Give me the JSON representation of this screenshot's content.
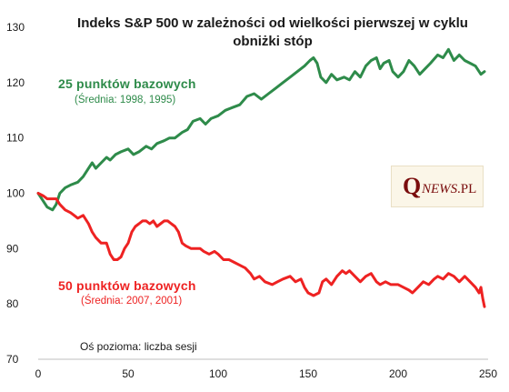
{
  "chart_data": {
    "type": "line",
    "title": "Indeks S&P 500 w zależności od wielkości pierwszej w cyklu obniżki stóp",
    "title_line1": "Indeks S&P 500 w zależności od wielkości pierwszej w cyklu",
    "title_line2": "obniżki stóp",
    "x_axis_note": "Oś pozioma: liczba sesji",
    "xlim": [
      0,
      250
    ],
    "ylim": [
      70,
      130
    ],
    "x_ticks": [
      0,
      50,
      100,
      150,
      200,
      250
    ],
    "y_ticks": [
      70,
      80,
      90,
      100,
      110,
      120,
      130
    ],
    "grid": false,
    "series": [
      {
        "name": "25 punktów  bazowych",
        "annotation": "(Średnia: 1998, 1995)",
        "color": "#2e8b4a",
        "points": [
          [
            0,
            100
          ],
          [
            3,
            98.5
          ],
          [
            5,
            97.5
          ],
          [
            8,
            97
          ],
          [
            10,
            98
          ],
          [
            12,
            100
          ],
          [
            15,
            101
          ],
          [
            18,
            101.5
          ],
          [
            22,
            102
          ],
          [
            25,
            103
          ],
          [
            28,
            104.5
          ],
          [
            30,
            105.5
          ],
          [
            32,
            104.5
          ],
          [
            35,
            105.5
          ],
          [
            38,
            106.5
          ],
          [
            40,
            106
          ],
          [
            43,
            107
          ],
          [
            46,
            107.5
          ],
          [
            50,
            108
          ],
          [
            53,
            107
          ],
          [
            56,
            107.5
          ],
          [
            60,
            108.5
          ],
          [
            63,
            108
          ],
          [
            66,
            109
          ],
          [
            70,
            109.5
          ],
          [
            73,
            110
          ],
          [
            76,
            110
          ],
          [
            80,
            111
          ],
          [
            83,
            111.5
          ],
          [
            86,
            113
          ],
          [
            90,
            113.5
          ],
          [
            93,
            112.5
          ],
          [
            96,
            113.5
          ],
          [
            100,
            114
          ],
          [
            104,
            115
          ],
          [
            108,
            115.5
          ],
          [
            112,
            116
          ],
          [
            116,
            117.5
          ],
          [
            120,
            118
          ],
          [
            124,
            117
          ],
          [
            128,
            118
          ],
          [
            132,
            119
          ],
          [
            136,
            120
          ],
          [
            140,
            121
          ],
          [
            144,
            122
          ],
          [
            148,
            123
          ],
          [
            151,
            124
          ],
          [
            153,
            124.5
          ],
          [
            155,
            123.5
          ],
          [
            157,
            121
          ],
          [
            160,
            120
          ],
          [
            163,
            121.5
          ],
          [
            166,
            120.5
          ],
          [
            170,
            121
          ],
          [
            173,
            120.5
          ],
          [
            176,
            122
          ],
          [
            179,
            121
          ],
          [
            182,
            123
          ],
          [
            185,
            124
          ],
          [
            188,
            124.5
          ],
          [
            190,
            122.5
          ],
          [
            192,
            123.5
          ],
          [
            195,
            124
          ],
          [
            197,
            122
          ],
          [
            200,
            121
          ],
          [
            203,
            122
          ],
          [
            206,
            124
          ],
          [
            209,
            123
          ],
          [
            212,
            121.5
          ],
          [
            215,
            122.5
          ],
          [
            218,
            123.5
          ],
          [
            222,
            125
          ],
          [
            225,
            124.5
          ],
          [
            228,
            126
          ],
          [
            231,
            124
          ],
          [
            234,
            125
          ],
          [
            237,
            124
          ],
          [
            240,
            123.5
          ],
          [
            243,
            123
          ],
          [
            246,
            121.5
          ],
          [
            248,
            122
          ]
        ]
      },
      {
        "name": "50 punktów  bazowych",
        "annotation": "(Średnia: 2007, 2001)",
        "color": "#ee2222",
        "points": [
          [
            0,
            100
          ],
          [
            3,
            99.5
          ],
          [
            5,
            99
          ],
          [
            8,
            99
          ],
          [
            10,
            99
          ],
          [
            12,
            98
          ],
          [
            15,
            97
          ],
          [
            18,
            96.5
          ],
          [
            20,
            96
          ],
          [
            22,
            95.5
          ],
          [
            25,
            96
          ],
          [
            28,
            94.5
          ],
          [
            30,
            93
          ],
          [
            32,
            92
          ],
          [
            35,
            91
          ],
          [
            38,
            91
          ],
          [
            40,
            89
          ],
          [
            42,
            88
          ],
          [
            44,
            88
          ],
          [
            46,
            88.5
          ],
          [
            48,
            90
          ],
          [
            50,
            91
          ],
          [
            52,
            93
          ],
          [
            54,
            94
          ],
          [
            56,
            94.5
          ],
          [
            58,
            95
          ],
          [
            60,
            95
          ],
          [
            62,
            94.5
          ],
          [
            64,
            95
          ],
          [
            66,
            94
          ],
          [
            68,
            94.5
          ],
          [
            70,
            95
          ],
          [
            72,
            95
          ],
          [
            74,
            94.5
          ],
          [
            76,
            94
          ],
          [
            78,
            93
          ],
          [
            80,
            91
          ],
          [
            82,
            90.5
          ],
          [
            85,
            90
          ],
          [
            88,
            90
          ],
          [
            90,
            90
          ],
          [
            92,
            89.5
          ],
          [
            95,
            89
          ],
          [
            98,
            89.5
          ],
          [
            100,
            89
          ],
          [
            103,
            88
          ],
          [
            106,
            88
          ],
          [
            109,
            87.5
          ],
          [
            112,
            87
          ],
          [
            115,
            86.5
          ],
          [
            118,
            85.5
          ],
          [
            120,
            84.5
          ],
          [
            123,
            85
          ],
          [
            126,
            84
          ],
          [
            130,
            83.5
          ],
          [
            133,
            84
          ],
          [
            136,
            84.5
          ],
          [
            140,
            85
          ],
          [
            143,
            84
          ],
          [
            146,
            84.5
          ],
          [
            148,
            83
          ],
          [
            150,
            82
          ],
          [
            153,
            81.5
          ],
          [
            156,
            82
          ],
          [
            158,
            84
          ],
          [
            160,
            84.5
          ],
          [
            163,
            83.5
          ],
          [
            166,
            85
          ],
          [
            169,
            86
          ],
          [
            171,
            85.5
          ],
          [
            173,
            86
          ],
          [
            176,
            85
          ],
          [
            179,
            84
          ],
          [
            182,
            85
          ],
          [
            185,
            85.5
          ],
          [
            188,
            84
          ],
          [
            190,
            83.5
          ],
          [
            193,
            84
          ],
          [
            196,
            83.5
          ],
          [
            200,
            83.5
          ],
          [
            203,
            83
          ],
          [
            206,
            82.5
          ],
          [
            208,
            82
          ],
          [
            211,
            83
          ],
          [
            214,
            84
          ],
          [
            217,
            83.5
          ],
          [
            220,
            84.5
          ],
          [
            222,
            85
          ],
          [
            225,
            84.5
          ],
          [
            228,
            85.5
          ],
          [
            231,
            85
          ],
          [
            234,
            84
          ],
          [
            237,
            85
          ],
          [
            240,
            84
          ],
          [
            243,
            83
          ],
          [
            245,
            82
          ],
          [
            246,
            83
          ],
          [
            247,
            81
          ],
          [
            248,
            79.5
          ]
        ]
      }
    ]
  },
  "logo": {
    "q": "Q",
    "news": "NEWS",
    "pl": ".PL"
  }
}
